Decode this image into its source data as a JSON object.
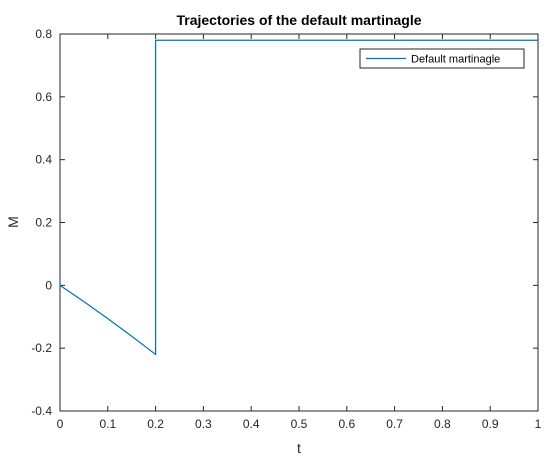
{
  "chart_data": {
    "type": "line",
    "title": "Trajectories of the default martinagle",
    "xlabel": "t",
    "ylabel": "M",
    "xlim": [
      0,
      1
    ],
    "ylim": [
      -0.4,
      0.8
    ],
    "xticks": [
      "0",
      "0.1",
      "0.2",
      "0.3",
      "0.4",
      "0.5",
      "0.6",
      "0.7",
      "0.8",
      "0.9",
      "1"
    ],
    "yticks": [
      "-0.4",
      "-0.2",
      "0",
      "0.2",
      "0.4",
      "0.6",
      "0.8"
    ],
    "grid": false,
    "legend_position": "top-right",
    "series": [
      {
        "name": "Default martinagle",
        "color": "#0072bd",
        "x": [
          0,
          0.05,
          0.1,
          0.15,
          0.2,
          0.2,
          1
        ],
        "y": [
          0,
          -0.052,
          -0.106,
          -0.162,
          -0.22,
          0.78,
          0.78
        ]
      }
    ]
  }
}
